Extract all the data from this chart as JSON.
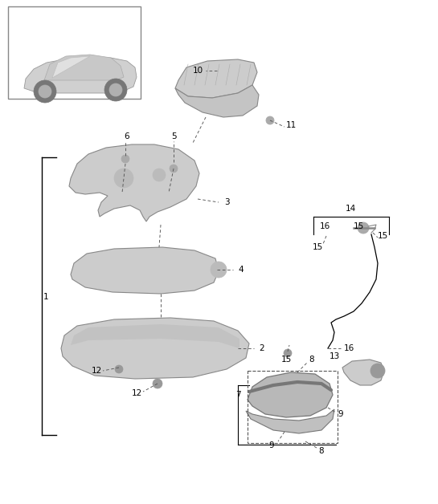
{
  "bg_color": "#ffffff",
  "line_color": "#000000",
  "dash_color": "#555555",
  "part_fill": "#cccccc",
  "part_edge": "#888888",
  "dark_part": "#aaaaaa",
  "label_size": 7.5,
  "bracket_lw": 1.0,
  "leader_lw": 0.65,
  "component_lw": 0.7
}
